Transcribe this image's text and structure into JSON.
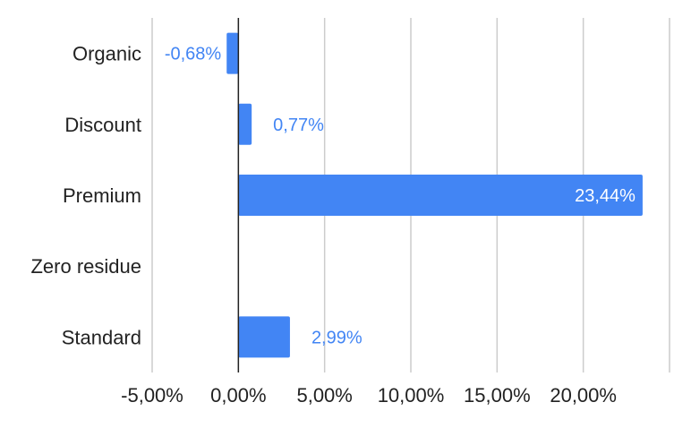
{
  "chart_data": {
    "type": "bar",
    "orientation": "horizontal",
    "categories": [
      "Organic",
      "Discount",
      "Premium",
      "Zero residue",
      "Standard"
    ],
    "values": [
      -0.68,
      0.77,
      23.44,
      null,
      2.99
    ],
    "data_labels": [
      "-0,68%",
      "0,77%",
      "23,44%",
      "",
      "2,99%"
    ],
    "x_ticks": [
      -5,
      0,
      5,
      10,
      15,
      20
    ],
    "x_tick_labels": [
      "-5,00%",
      "0,00%",
      "5,00%",
      "10,00%",
      "15,00%",
      "20,00%"
    ],
    "xlim": [
      -5,
      25
    ],
    "grid": true,
    "title": "",
    "xlabel": "",
    "ylabel": "",
    "colors": {
      "bar": "#4285f4",
      "label_outside": "#4285f4",
      "label_inside": "#ffffff",
      "grid": "#cccccc",
      "zero_axis": "#222222"
    }
  }
}
